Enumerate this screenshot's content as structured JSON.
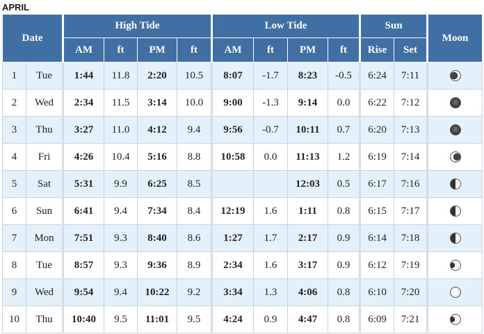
{
  "month": "APRIL",
  "headers": {
    "date": "Date",
    "high_tide": "High Tide",
    "low_tide": "Low Tide",
    "sun": "Sun",
    "moon": "Moon",
    "am": "AM",
    "pm": "PM",
    "ft": "ft",
    "rise": "Rise",
    "set": "Set"
  },
  "rows": [
    {
      "day": "1",
      "weekday": "Tue",
      "high_am": "1:44",
      "high_am_ft": "11.8",
      "high_pm": "2:20",
      "high_pm_ft": "10.5",
      "low_am": "8:07",
      "low_am_ft": "-1.7",
      "low_pm": "8:23",
      "low_pm_ft": "-0.5",
      "sunrise": "6:24",
      "sunset": "7:11",
      "moon_icon": "moon-waning-crescent-icon"
    },
    {
      "day": "2",
      "weekday": "Wed",
      "high_am": "2:34",
      "high_am_ft": "11.5",
      "high_pm": "3:14",
      "high_pm_ft": "10.0",
      "low_am": "9:00",
      "low_am_ft": "-1.3",
      "low_pm": "9:14",
      "low_pm_ft": "0.0",
      "sunrise": "6:22",
      "sunset": "7:12",
      "moon_icon": "moon-new-icon"
    },
    {
      "day": "3",
      "weekday": "Thu",
      "high_am": "3:27",
      "high_am_ft": "11.0",
      "high_pm": "4:12",
      "high_pm_ft": "9.4",
      "low_am": "9:56",
      "low_am_ft": "-0.7",
      "low_pm": "10:11",
      "low_pm_ft": "0.7",
      "sunrise": "6:20",
      "sunset": "7:13",
      "moon_icon": "moon-new-icon"
    },
    {
      "day": "4",
      "weekday": "Fri",
      "high_am": "4:26",
      "high_am_ft": "10.4",
      "high_pm": "5:16",
      "high_pm_ft": "8.8",
      "low_am": "10:58",
      "low_am_ft": "0.0",
      "low_pm": "11:13",
      "low_pm_ft": "1.2",
      "sunrise": "6:19",
      "sunset": "7:14",
      "moon_icon": "moon-waxing-crescent-icon"
    },
    {
      "day": "5",
      "weekday": "Sat",
      "high_am": "5:31",
      "high_am_ft": "9.9",
      "high_pm": "6:25",
      "high_pm_ft": "8.5",
      "low_am": "",
      "low_am_ft": "",
      "low_pm": "12:03",
      "low_pm_ft": "0.5",
      "sunrise": "6:17",
      "sunset": "7:16",
      "moon_icon": "moon-first-quarter-icon"
    },
    {
      "day": "6",
      "weekday": "Sun",
      "high_am": "6:41",
      "high_am_ft": "9.4",
      "high_pm": "7:34",
      "high_pm_ft": "8.4",
      "low_am": "12:19",
      "low_am_ft": "1.6",
      "low_pm": "1:11",
      "low_pm_ft": "0.8",
      "sunrise": "6:15",
      "sunset": "7:17",
      "moon_icon": "moon-first-quarter-icon"
    },
    {
      "day": "7",
      "weekday": "Mon",
      "high_am": "7:51",
      "high_am_ft": "9.3",
      "high_pm": "8:40",
      "high_pm_ft": "8.6",
      "low_am": "1:27",
      "low_am_ft": "1.7",
      "low_pm": "2:17",
      "low_pm_ft": "0.9",
      "sunrise": "6:14",
      "sunset": "7:18",
      "moon_icon": "moon-first-quarter-icon"
    },
    {
      "day": "8",
      "weekday": "Tue",
      "high_am": "8:57",
      "high_am_ft": "9.3",
      "high_pm": "9:36",
      "high_pm_ft": "8.9",
      "low_am": "2:34",
      "low_am_ft": "1.6",
      "low_pm": "3:17",
      "low_pm_ft": "0.9",
      "sunrise": "6:12",
      "sunset": "7:19",
      "moon_icon": "moon-waxing-gibbous-icon"
    },
    {
      "day": "9",
      "weekday": "Wed",
      "high_am": "9:54",
      "high_am_ft": "9.4",
      "high_pm": "10:22",
      "high_pm_ft": "9.2",
      "low_am": "3:34",
      "low_am_ft": "1.3",
      "low_pm": "4:06",
      "low_pm_ft": "0.8",
      "sunrise": "6:10",
      "sunset": "7:20",
      "moon_icon": "moon-full-icon"
    },
    {
      "day": "10",
      "weekday": "Thu",
      "high_am": "10:40",
      "high_am_ft": "9.5",
      "high_pm": "11:01",
      "high_pm_ft": "9.5",
      "low_am": "4:24",
      "low_am_ft": "0.9",
      "low_pm": "4:47",
      "low_pm_ft": "0.8",
      "sunrise": "6:09",
      "sunset": "7:21",
      "moon_icon": "moon-waxing-gibbous-icon"
    }
  ]
}
